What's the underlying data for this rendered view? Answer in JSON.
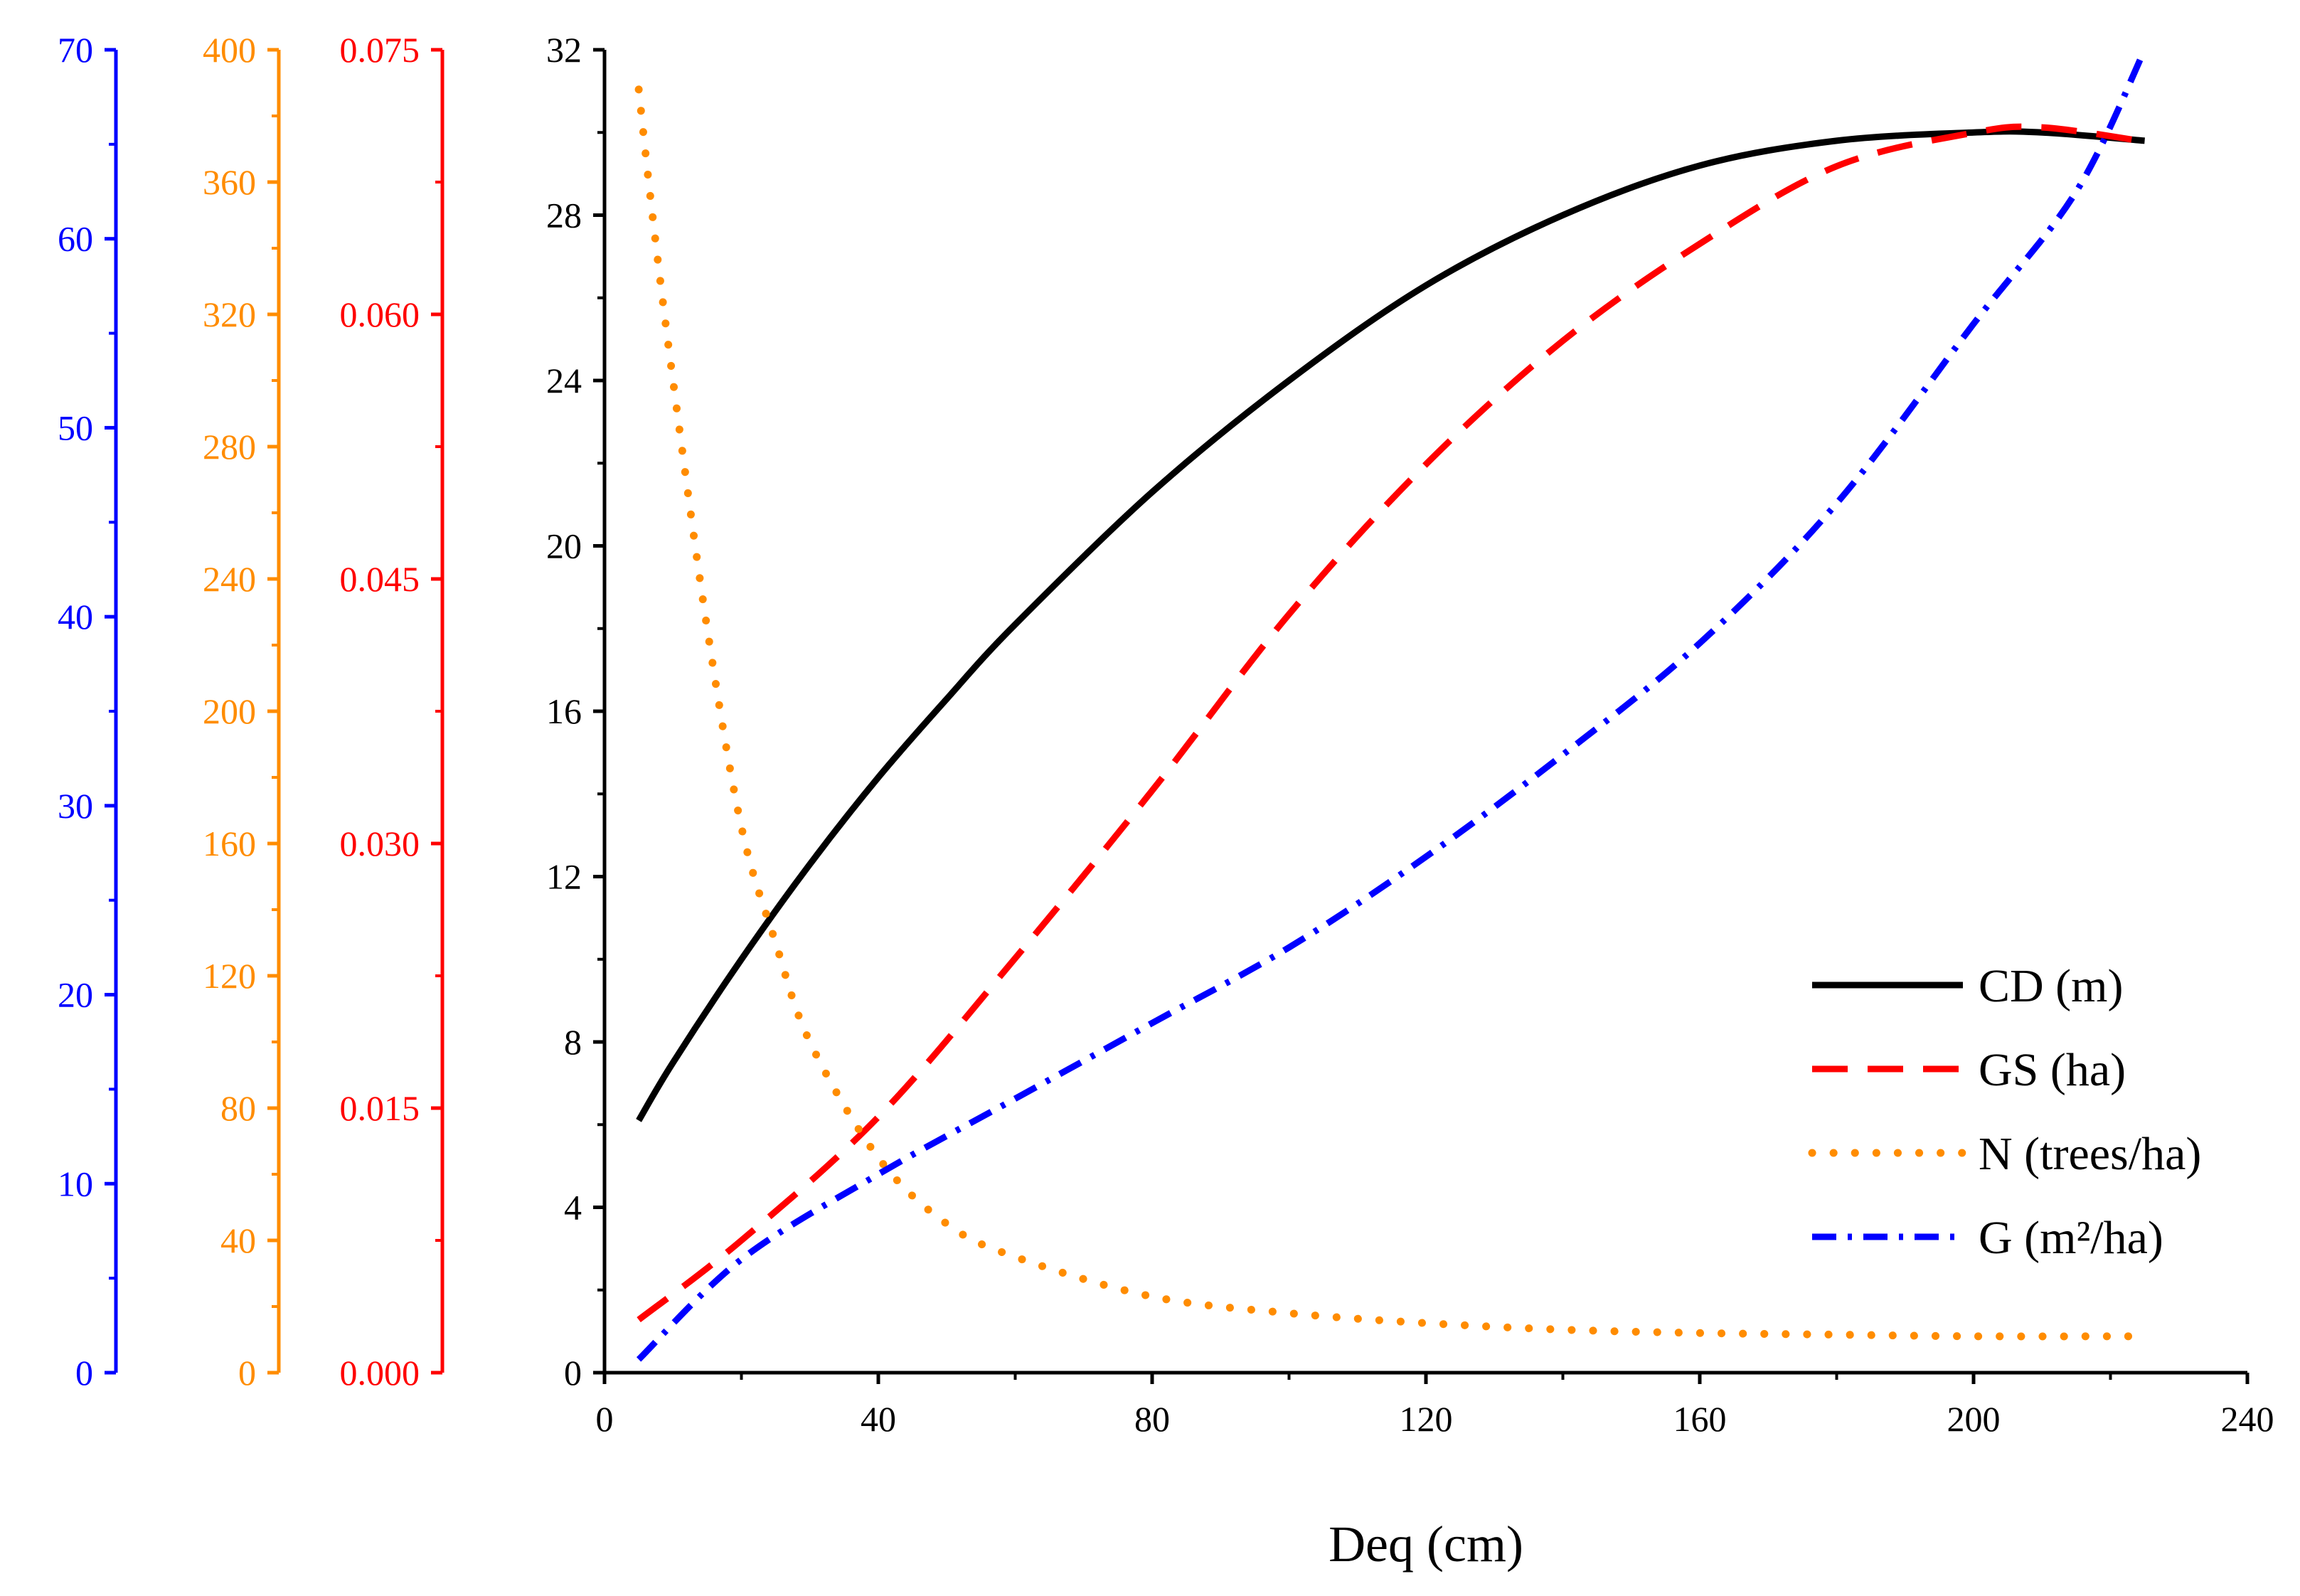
{
  "chart_data": {
    "type": "line",
    "title": "",
    "xlabel": "Deq (cm)",
    "xlim": [
      0,
      240
    ],
    "x_ticks": [
      "0",
      "40",
      "80",
      "120",
      "160",
      "200",
      "240"
    ],
    "legend_position": "bottom-right",
    "axes": [
      {
        "id": "cd",
        "position": "main",
        "color": "#000000",
        "ylim": [
          0,
          32
        ],
        "tick_values": [
          0,
          4,
          8,
          12,
          16,
          20,
          24,
          28,
          32
        ],
        "tick_labels": [
          "0",
          "4",
          "8",
          "12",
          "16",
          "20",
          "24",
          "28",
          "32"
        ],
        "minor_count": 1
      },
      {
        "id": "gs",
        "position": "offset-1",
        "color": "#ff0000",
        "ylim": [
          0,
          0.075
        ],
        "tick_values": [
          0,
          0.015,
          0.03,
          0.045,
          0.06,
          0.075
        ],
        "tick_labels": [
          "0.000",
          "0.015",
          "0.030",
          "0.045",
          "0.060",
          "0.075"
        ],
        "minor_count": 1
      },
      {
        "id": "n",
        "position": "offset-2",
        "color": "#ff8c00",
        "ylim": [
          0,
          400
        ],
        "tick_values": [
          0,
          40,
          80,
          120,
          160,
          200,
          240,
          280,
          320,
          360,
          400
        ],
        "tick_labels": [
          "0",
          "40",
          "80",
          "120",
          "160",
          "200",
          "240",
          "280",
          "320",
          "360",
          "400"
        ],
        "minor_count": 1
      },
      {
        "id": "g",
        "position": "offset-3",
        "color": "#0000ff",
        "ylim": [
          0,
          70
        ],
        "tick_values": [
          0,
          10,
          20,
          30,
          40,
          50,
          60,
          70
        ],
        "tick_labels": [
          "0",
          "10",
          "20",
          "30",
          "40",
          "50",
          "60",
          "70"
        ],
        "minor_count": 1
      }
    ],
    "series": [
      {
        "name": "CD (m)",
        "axis": "cd",
        "color": "#000000",
        "style": "solid",
        "x": [
          5,
          10,
          20,
          30,
          40,
          50,
          60,
          80,
          100,
          120,
          140,
          160,
          180,
          200,
          210,
          225
        ],
        "values": [
          6.1,
          7.5,
          10.0,
          12.3,
          14.4,
          16.3,
          18.1,
          21.3,
          24.0,
          26.3,
          28.0,
          29.2,
          29.8,
          30.0,
          30.0,
          29.8
        ]
      },
      {
        "name": "GS (ha)",
        "axis": "gs",
        "color": "#ff0000",
        "style": "dash",
        "x": [
          5,
          20,
          40,
          60,
          80,
          100,
          120,
          140,
          160,
          180,
          200,
          210,
          225
        ],
        "values": [
          0.003,
          0.0075,
          0.0145,
          0.0235,
          0.033,
          0.043,
          0.0515,
          0.0585,
          0.064,
          0.0684,
          0.0703,
          0.0706,
          0.0698
        ]
      },
      {
        "name": "N (trees/ha)",
        "axis": "n",
        "color": "#ff8c00",
        "style": "dot",
        "x": [
          5,
          7,
          10,
          15,
          20,
          25,
          30,
          40,
          50,
          60,
          80,
          100,
          120,
          140,
          160,
          180,
          200,
          225
        ],
        "values": [
          388,
          350,
          300,
          225,
          165,
          130,
          100,
          65,
          45,
          35,
          23,
          18,
          15,
          13,
          12,
          11.5,
          11,
          11
        ]
      },
      {
        "name": "G (m²/ha)",
        "axis": "g",
        "color": "#0000ff",
        "style": "dashdot",
        "x": [
          5,
          20,
          40,
          60,
          80,
          100,
          120,
          140,
          160,
          180,
          200,
          215,
          225
        ],
        "values": [
          0.7,
          6.0,
          10.5,
          14.5,
          18.5,
          22.5,
          27.3,
          32.7,
          38.6,
          46.0,
          55.5,
          62.5,
          70
        ]
      }
    ]
  }
}
